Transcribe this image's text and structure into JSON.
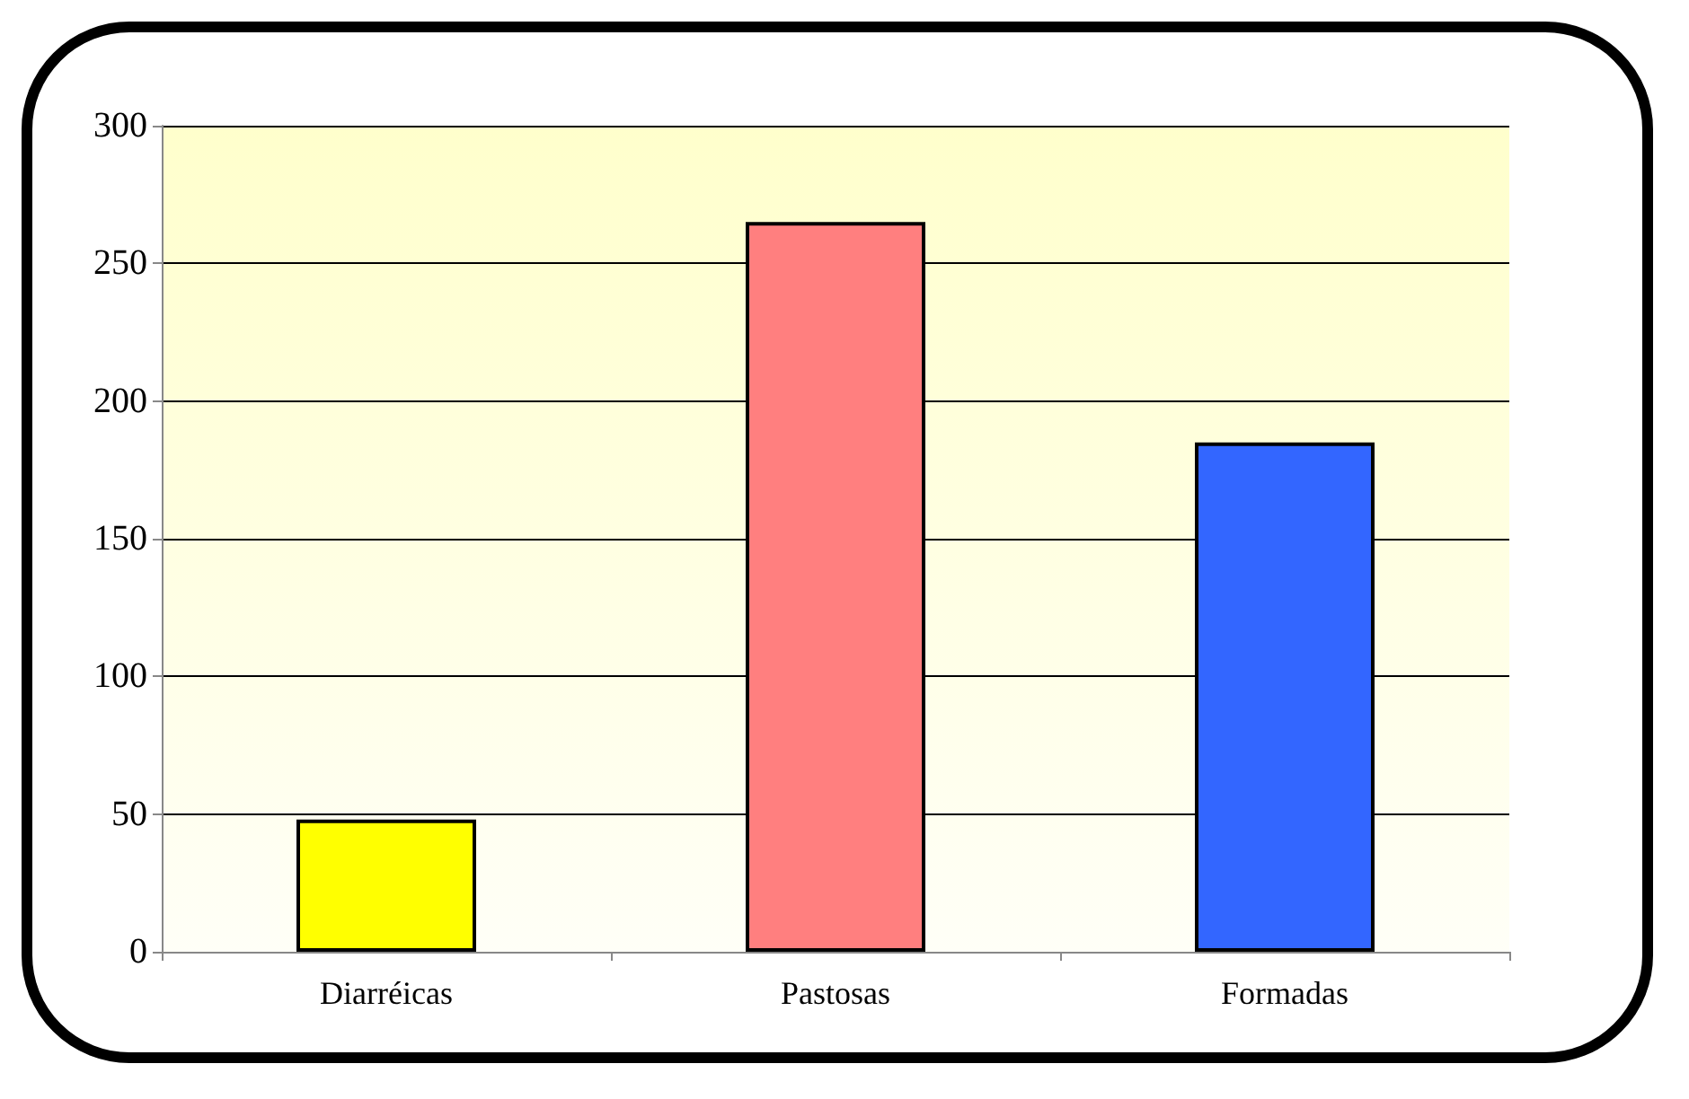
{
  "chart_data": {
    "type": "bar",
    "categories": [
      "Diarréicas",
      "Pastosas",
      "Formadas"
    ],
    "values": [
      48,
      265,
      185
    ],
    "colors": [
      "#ffff00",
      "#ff7f7f",
      "#3366ff"
    ],
    "ylim": [
      0,
      300
    ],
    "yticks": [
      0,
      50,
      100,
      150,
      200,
      250,
      300
    ],
    "grid": "y"
  }
}
